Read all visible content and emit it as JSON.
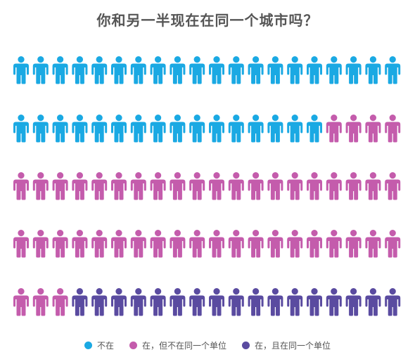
{
  "chart_data": {
    "type": "pictograph",
    "title": "你和另一半现在在同一个城市吗？",
    "icon": "person-icon",
    "total": 100,
    "rows": 5,
    "per_row": 20,
    "series": [
      {
        "name": "不在",
        "value": 36,
        "color": "#1aa9e3"
      },
      {
        "name": "在，但不在同一个单位",
        "value": 47,
        "color": "#c45cac"
      },
      {
        "name": "在，且在同一个单位",
        "value": 17,
        "color": "#5a4ba0"
      }
    ],
    "legend_position": "bottom-center"
  }
}
